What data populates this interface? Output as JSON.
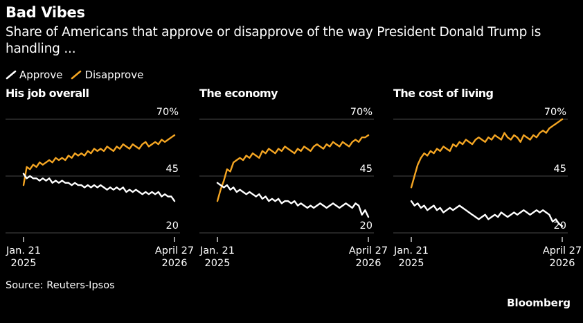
{
  "header": {
    "title": "Bad Vibes",
    "subtitle": "Share of Americans that approve or disapprove of the way President Donald Trump is handling ..."
  },
  "legend": [
    {
      "label": "Approve",
      "color": "#ffffff"
    },
    {
      "label": "Disapprove",
      "color": "#f5a623"
    }
  ],
  "footer": {
    "source": "Source: Reuters-Ipsos",
    "logo": "Bloomberg"
  },
  "chart_data": [
    {
      "type": "line",
      "title": "His job overall",
      "x_labels": [
        {
          "line1": "Jan. 21",
          "line2": "2025"
        },
        {
          "line1": "April 27",
          "line2": "2026"
        }
      ],
      "y_ticks": [
        "70%",
        "45",
        "20"
      ],
      "ylim": [
        20,
        70
      ],
      "grid": true,
      "series": [
        {
          "name": "Approve",
          "color": "#ffffff",
          "values": [
            46,
            44,
            45,
            44,
            44,
            43,
            44,
            43,
            44,
            42,
            43,
            42,
            43,
            42,
            42,
            41,
            42,
            41,
            41,
            40,
            41,
            40,
            41,
            40,
            41,
            40,
            39,
            40,
            39,
            40,
            39,
            40,
            38,
            39,
            38,
            39,
            38,
            37,
            38,
            37,
            38,
            37,
            38,
            36,
            37,
            36,
            36,
            34
          ]
        },
        {
          "name": "Disapprove",
          "color": "#f5a623",
          "values": [
            41,
            49,
            48,
            50,
            49,
            51,
            50,
            51,
            52,
            51,
            53,
            52,
            53,
            52,
            54,
            53,
            55,
            54,
            55,
            54,
            56,
            55,
            57,
            56,
            57,
            56,
            58,
            57,
            56,
            58,
            57,
            59,
            58,
            57,
            59,
            58,
            57,
            59,
            60,
            58,
            59,
            60,
            59,
            61,
            60,
            61,
            62,
            63
          ]
        }
      ]
    },
    {
      "type": "line",
      "title": "The economy",
      "x_labels": [
        {
          "line1": "Jan. 21",
          "line2": "2025"
        },
        {
          "line1": "April 27",
          "line2": "2026"
        }
      ],
      "y_ticks": [
        "70%",
        "45",
        "20"
      ],
      "ylim": [
        20,
        70
      ],
      "grid": true,
      "series": [
        {
          "name": "Approve",
          "color": "#ffffff",
          "values": [
            42,
            41,
            40,
            41,
            39,
            40,
            38,
            39,
            38,
            37,
            38,
            37,
            36,
            37,
            35,
            36,
            34,
            35,
            34,
            35,
            33,
            34,
            34,
            33,
            34,
            32,
            33,
            32,
            31,
            32,
            31,
            32,
            33,
            32,
            31,
            32,
            33,
            32,
            31,
            32,
            33,
            32,
            31,
            33,
            32,
            28,
            30,
            27
          ]
        },
        {
          "name": "Disapprove",
          "color": "#f5a623",
          "values": [
            34,
            39,
            43,
            48,
            47,
            51,
            52,
            53,
            52,
            54,
            53,
            55,
            54,
            53,
            56,
            55,
            57,
            56,
            55,
            57,
            56,
            58,
            57,
            56,
            55,
            57,
            56,
            58,
            57,
            56,
            58,
            59,
            58,
            57,
            59,
            58,
            60,
            59,
            58,
            60,
            59,
            58,
            60,
            61,
            60,
            62,
            62,
            63
          ]
        }
      ]
    },
    {
      "type": "line",
      "title": "The cost of living",
      "x_labels": [
        {
          "line1": "Jan. 21",
          "line2": "2025"
        },
        {
          "line1": "April 27",
          "line2": "2026"
        }
      ],
      "y_ticks": [
        "70%",
        "45",
        "20"
      ],
      "ylim": [
        20,
        70
      ],
      "grid": true,
      "series": [
        {
          "name": "Approve",
          "color": "#ffffff",
          "values": [
            34,
            32,
            33,
            31,
            32,
            30,
            31,
            32,
            30,
            31,
            29,
            30,
            31,
            30,
            31,
            32,
            31,
            30,
            29,
            28,
            27,
            26,
            27,
            28,
            26,
            27,
            28,
            27,
            29,
            28,
            27,
            28,
            29,
            28,
            29,
            30,
            29,
            28,
            29,
            30,
            29,
            30,
            29,
            28,
            25,
            26,
            24,
            23
          ]
        },
        {
          "name": "Disapprove",
          "color": "#f5a623",
          "values": [
            40,
            45,
            50,
            53,
            55,
            54,
            56,
            55,
            57,
            56,
            58,
            57,
            56,
            59,
            58,
            60,
            59,
            61,
            60,
            59,
            61,
            62,
            61,
            60,
            62,
            61,
            63,
            62,
            61,
            64,
            62,
            61,
            63,
            62,
            60,
            63,
            62,
            61,
            63,
            62,
            64,
            65,
            64,
            66,
            67,
            68,
            69,
            70
          ]
        }
      ]
    }
  ]
}
